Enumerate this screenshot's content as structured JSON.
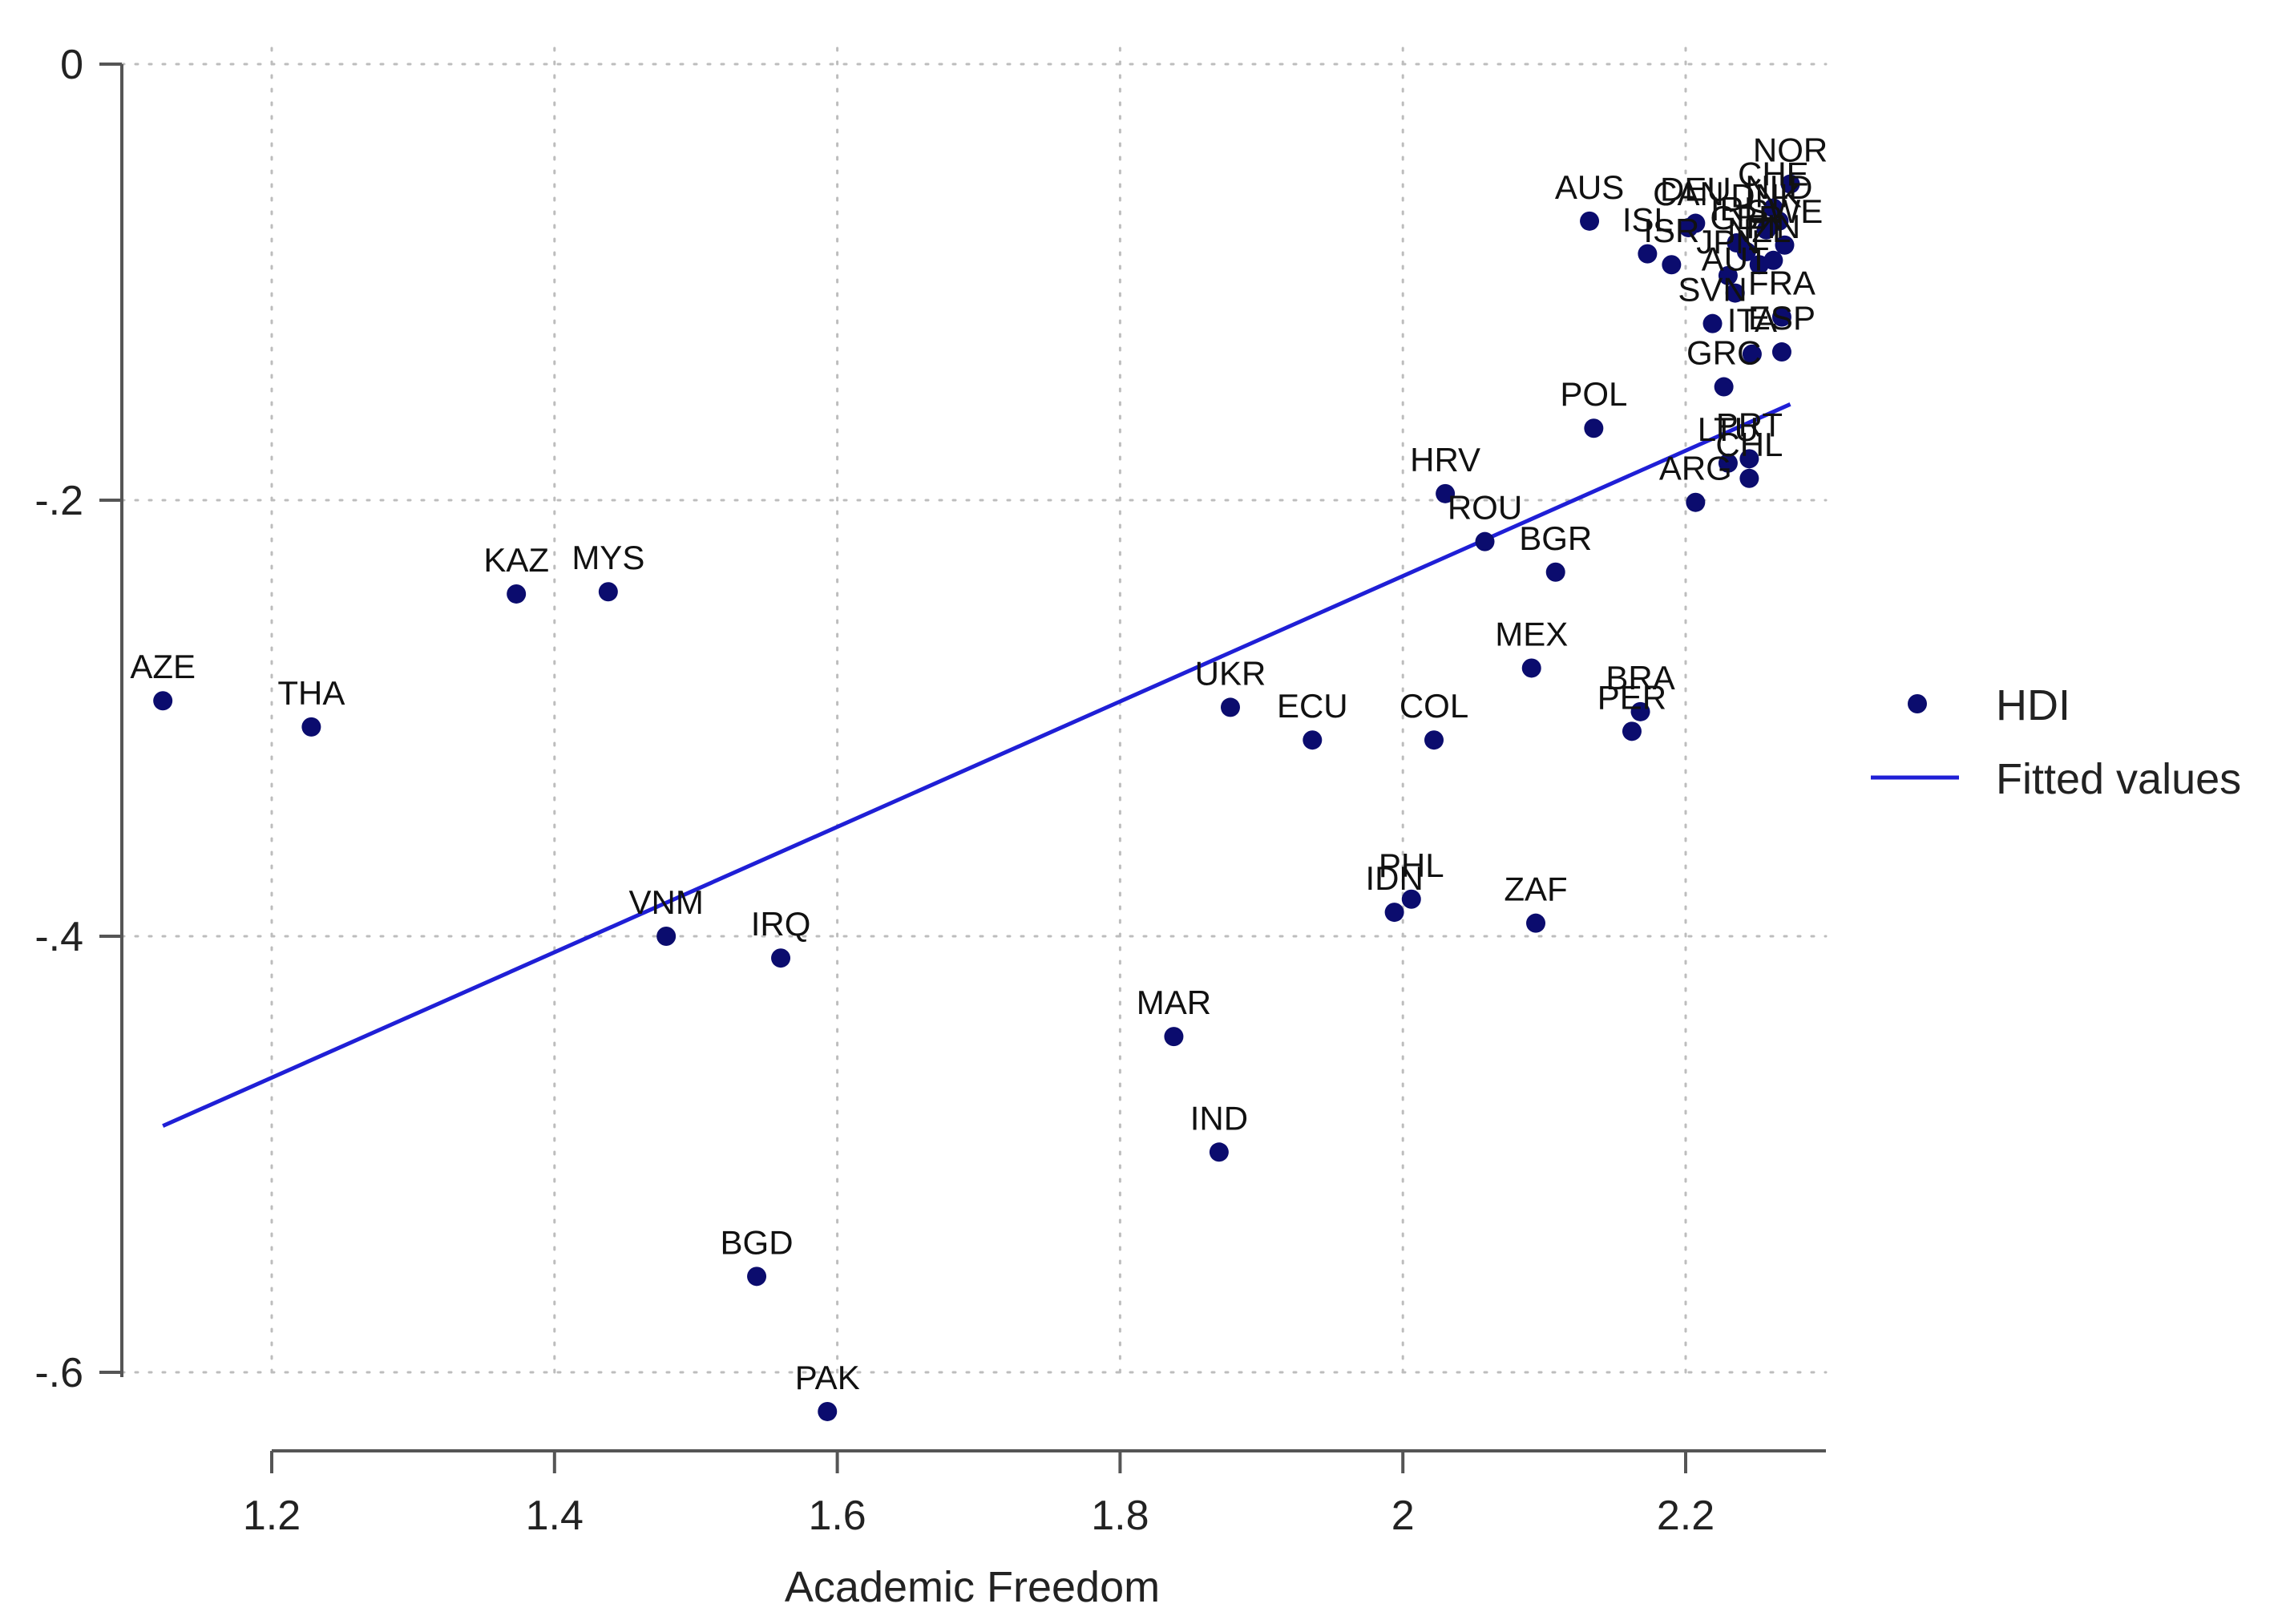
{
  "chart_data": {
    "type": "scatter",
    "title": "",
    "xlabel": "Academic Freedom",
    "ylabel": "",
    "xlim": [
      1.12,
      2.28
    ],
    "ylim": [
      -0.63,
      0.0
    ],
    "x_ticks": [
      1.2,
      1.4,
      1.6,
      1.8,
      2.0,
      2.2
    ],
    "x_tick_labels": [
      "1.2",
      "1.4",
      "1.6",
      "1.8",
      "2",
      "2.2"
    ],
    "y_ticks": [
      0,
      -0.2,
      -0.4,
      -0.6
    ],
    "y_tick_labels": [
      "0",
      "-.2",
      "-.4",
      "-.6"
    ],
    "grid": true,
    "legend": {
      "position": "right",
      "entries": [
        {
          "label": "HDI",
          "kind": "marker"
        },
        {
          "label": "Fitted values",
          "kind": "line"
        }
      ]
    },
    "colors": {
      "marker": "#0b0c6e",
      "line": "#1f1fd6"
    },
    "series": [
      {
        "name": "HDI",
        "points": [
          {
            "label": "AZE",
            "x": 1.123,
            "y": -0.292
          },
          {
            "label": "THA",
            "x": 1.228,
            "y": -0.304
          },
          {
            "label": "KAZ",
            "x": 1.373,
            "y": -0.243
          },
          {
            "label": "MYS",
            "x": 1.438,
            "y": -0.242
          },
          {
            "label": "VNM",
            "x": 1.479,
            "y": -0.4
          },
          {
            "label": "IRQ",
            "x": 1.56,
            "y": -0.41
          },
          {
            "label": "BGD",
            "x": 1.543,
            "y": -0.556
          },
          {
            "label": "PAK",
            "x": 1.593,
            "y": -0.618
          },
          {
            "label": "MAR",
            "x": 1.838,
            "y": -0.446
          },
          {
            "label": "IND",
            "x": 1.87,
            "y": -0.499
          },
          {
            "label": "UKR",
            "x": 1.878,
            "y": -0.295
          },
          {
            "label": "ECU",
            "x": 1.936,
            "y": -0.31
          },
          {
            "label": "COL",
            "x": 2.022,
            "y": -0.31
          },
          {
            "label": "IDN",
            "x": 1.994,
            "y": -0.389
          },
          {
            "label": "PHL",
            "x": 2.006,
            "y": -0.383
          },
          {
            "label": "ZAF",
            "x": 2.094,
            "y": -0.394
          },
          {
            "label": "MEX",
            "x": 2.091,
            "y": -0.277
          },
          {
            "label": "BRA",
            "x": 2.168,
            "y": -0.297
          },
          {
            "label": "PER",
            "x": 2.162,
            "y": -0.306
          },
          {
            "label": "HRV",
            "x": 2.03,
            "y": -0.197
          },
          {
            "label": "ROU",
            "x": 2.058,
            "y": -0.219
          },
          {
            "label": "BGR",
            "x": 2.108,
            "y": -0.233
          },
          {
            "label": "POL",
            "x": 2.135,
            "y": -0.167
          },
          {
            "label": "ARG",
            "x": 2.207,
            "y": -0.201
          },
          {
            "label": "LTU",
            "x": 2.23,
            "y": -0.183
          },
          {
            "label": "PRT",
            "x": 2.245,
            "y": -0.181
          },
          {
            "label": "CHL",
            "x": 2.245,
            "y": -0.19
          },
          {
            "label": "GRC",
            "x": 2.227,
            "y": -0.148
          },
          {
            "label": "ITA",
            "x": 2.247,
            "y": -0.133
          },
          {
            "label": "ESP",
            "x": 2.268,
            "y": -0.132
          },
          {
            "label": "SVN",
            "x": 2.219,
            "y": -0.119
          },
          {
            "label": "FRA",
            "x": 2.268,
            "y": -0.116
          },
          {
            "label": "AUT",
            "x": 2.235,
            "y": -0.105
          },
          {
            "label": "ISR",
            "x": 2.19,
            "y": -0.092
          },
          {
            "label": "JPN",
            "x": 2.23,
            "y": -0.097
          },
          {
            "label": "NZL",
            "x": 2.252,
            "y": -0.092
          },
          {
            "label": "ISL",
            "x": 2.173,
            "y": -0.087
          },
          {
            "label": "CAN",
            "x": 2.202,
            "y": -0.075
          },
          {
            "label": "AUS",
            "x": 2.132,
            "y": -0.072
          },
          {
            "label": "DEU",
            "x": 2.207,
            "y": -0.073
          },
          {
            "label": "IRL",
            "x": 2.236,
            "y": -0.082
          },
          {
            "label": "GBR",
            "x": 2.243,
            "y": -0.086
          },
          {
            "label": "FIN",
            "x": 2.262,
            "y": -0.09
          },
          {
            "label": "SWE",
            "x": 2.27,
            "y": -0.083
          },
          {
            "label": "DNK",
            "x": 2.257,
            "y": -0.076
          },
          {
            "label": "NLD",
            "x": 2.266,
            "y": -0.072
          },
          {
            "label": "CHE",
            "x": 2.262,
            "y": -0.066
          },
          {
            "label": "NOR",
            "x": 2.274,
            "y": -0.055
          }
        ]
      },
      {
        "name": "Fitted values",
        "type": "line",
        "points": [
          {
            "x": 1.123,
            "y": -0.487
          },
          {
            "x": 2.274,
            "y": -0.156
          }
        ]
      }
    ]
  }
}
